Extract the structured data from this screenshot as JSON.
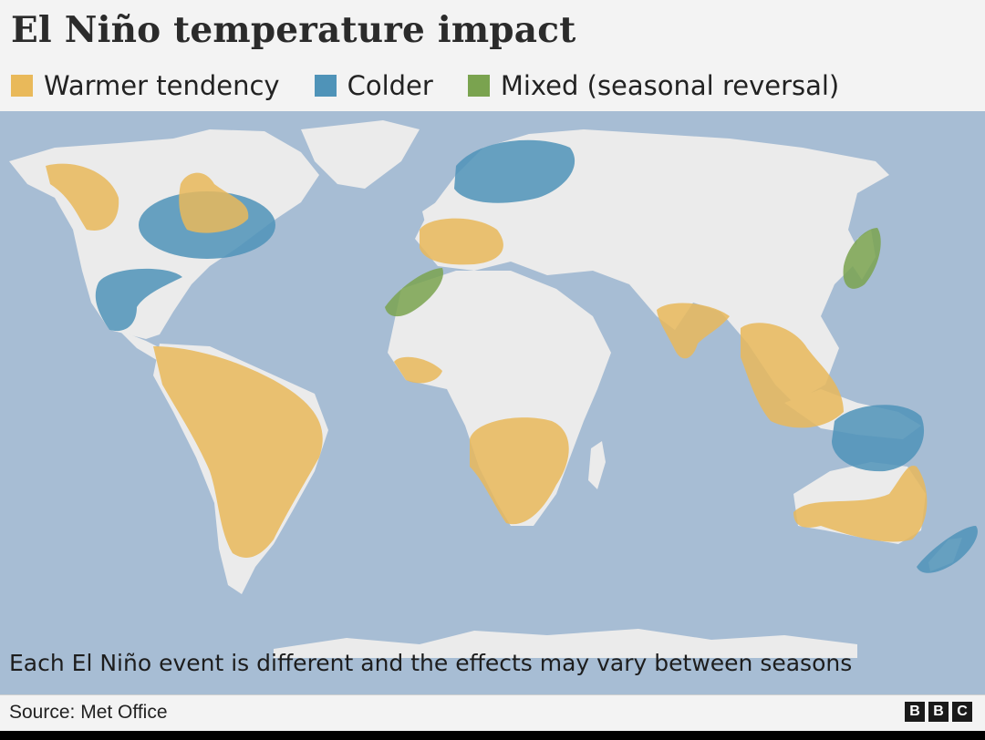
{
  "title": "El Niño temperature impact",
  "legend": [
    {
      "label": "Warmer tendency",
      "color": "#e9b95a"
    },
    {
      "label": "Colder",
      "color": "#4f93b8"
    },
    {
      "label": "Mixed (seasonal reversal)",
      "color": "#7aa34f"
    }
  ],
  "map": {
    "ocean_color": "#a7bdd4",
    "land_color": "#ebebeb",
    "regions": [
      {
        "name": "Western Canada / Alaska",
        "tendency": "warmer"
      },
      {
        "name": "Great Lakes / Northeast North America",
        "tendency": "warmer"
      },
      {
        "name": "Central & eastern North America",
        "tendency": "colder"
      },
      {
        "name": "Gulf of Mexico / Mexico",
        "tendency": "colder"
      },
      {
        "name": "Northern Europe / Scandinavia",
        "tendency": "colder"
      },
      {
        "name": "Western & central Europe",
        "tendency": "warmer"
      },
      {
        "name": "North-west Africa",
        "tendency": "mixed"
      },
      {
        "name": "West Africa",
        "tendency": "warmer"
      },
      {
        "name": "Southern Africa",
        "tendency": "warmer"
      },
      {
        "name": "India",
        "tendency": "warmer"
      },
      {
        "name": "South-east Asia",
        "tendency": "warmer"
      },
      {
        "name": "Japan",
        "tendency": "mixed"
      },
      {
        "name": "Indonesia / New Guinea",
        "tendency": "colder"
      },
      {
        "name": "Australia",
        "tendency": "warmer"
      },
      {
        "name": "New Zealand",
        "tendency": "colder"
      },
      {
        "name": "South America",
        "tendency": "warmer"
      }
    ]
  },
  "note": "Each El Niño event is different and the effects may vary between seasons",
  "source": "Source: Met Office",
  "logo": {
    "letters": [
      "B",
      "B",
      "C"
    ]
  }
}
